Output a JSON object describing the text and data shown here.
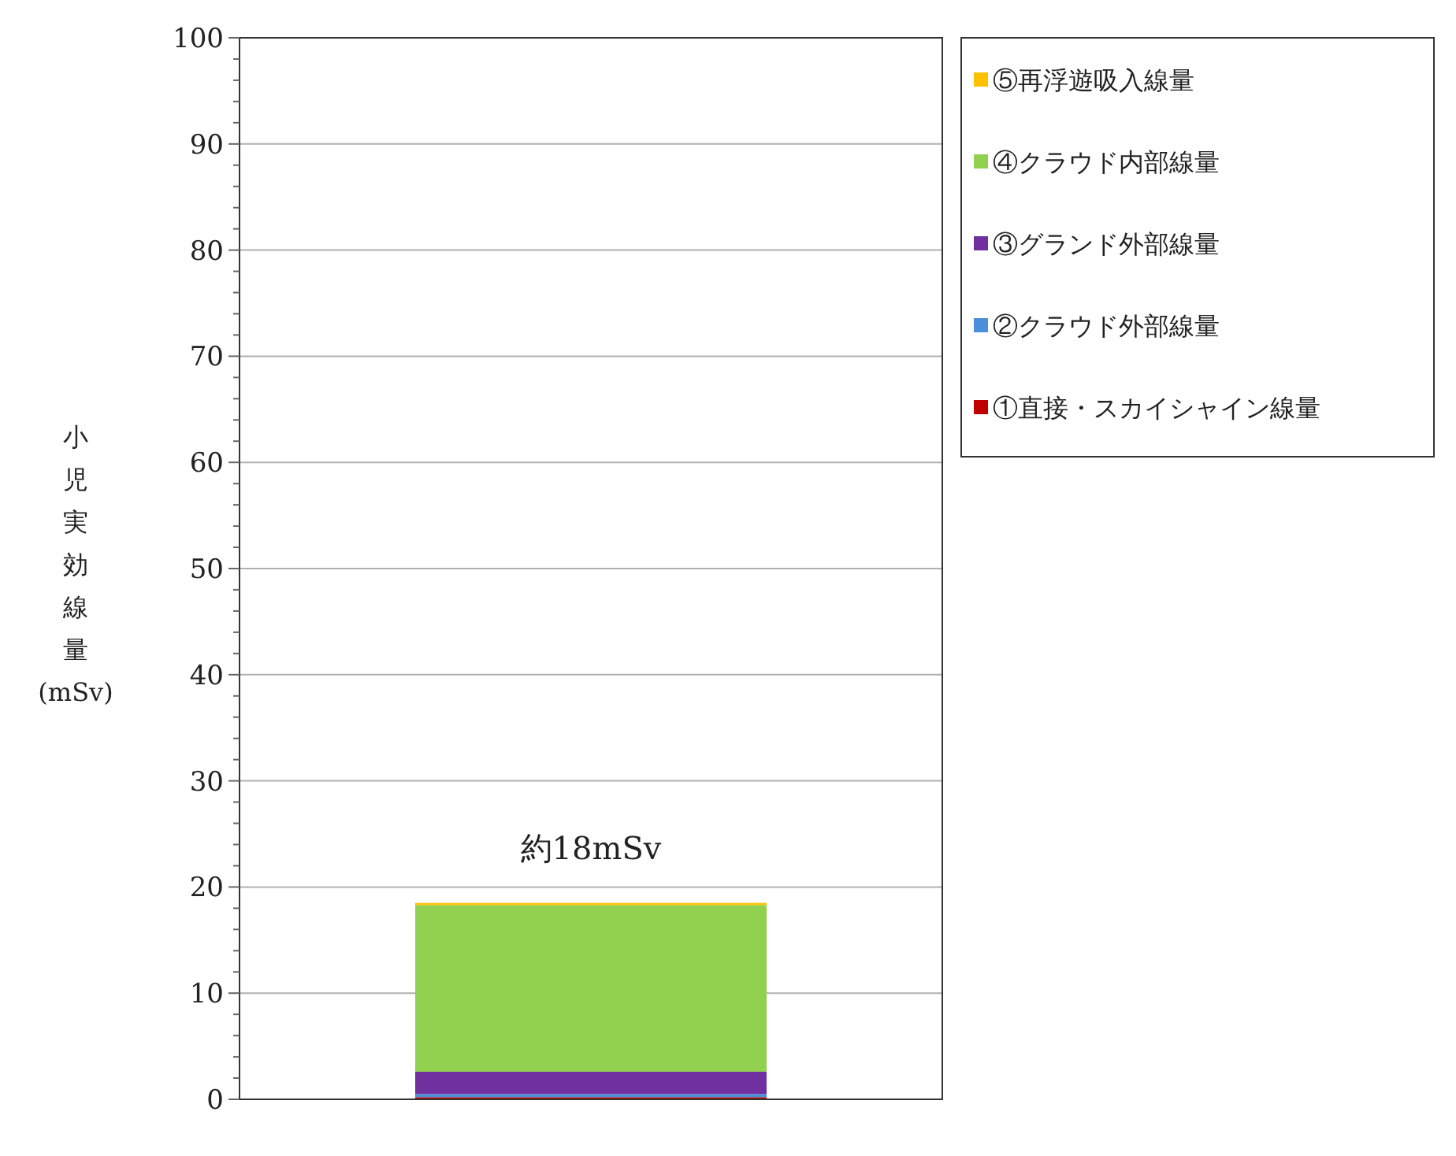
{
  "chart_data": {
    "type": "bar",
    "stacked": true,
    "categories": [
      null
    ],
    "series": [
      {
        "name": "①直接・スカイシャイン線量",
        "color": "#c00000",
        "values": [
          0.2
        ]
      },
      {
        "name": "②クラウド外部線量",
        "color": "#4a90d9",
        "values": [
          0.3
        ]
      },
      {
        "name": "③グランド外部線量",
        "color": "#7030a0",
        "values": [
          2.1
        ]
      },
      {
        "name": "④クラウド内部線量",
        "color": "#92d050",
        "values": [
          15.7
        ]
      },
      {
        "name": "⑤再浮遊吸入線量",
        "color": "#ffc000",
        "values": [
          0.2
        ]
      }
    ],
    "ylabel": "小児実効線量(mSv)",
    "ylim": [
      0,
      100
    ],
    "yticks": [
      0,
      {
        "value": 2,
        "label": null
      },
      {
        "value": 4,
        "label": null
      },
      {
        "value": 6,
        "label": null
      },
      {
        "value": 8,
        "label": null
      },
      10,
      {
        "value": 12,
        "label": null
      },
      {
        "value": 14,
        "label": null
      },
      {
        "value": 16,
        "label": null
      },
      {
        "value": 18,
        "label": null
      },
      20,
      {
        "value": 22,
        "label": null
      },
      {
        "value": 24,
        "label": null
      },
      {
        "value": 26,
        "label": null
      },
      {
        "value": 28,
        "label": null
      },
      30,
      {
        "value": 32,
        "label": null
      },
      {
        "value": 34,
        "label": null
      },
      {
        "value": 36,
        "label": null
      },
      {
        "value": 38,
        "label": null
      },
      40,
      {
        "value": 42,
        "label": null
      },
      {
        "value": 44,
        "label": null
      },
      {
        "value": 46,
        "label": null
      },
      {
        "value": 48,
        "label": null
      },
      50,
      {
        "value": 52,
        "label": null
      },
      {
        "value": 54,
        "label": null
      },
      {
        "value": 56,
        "label": null
      },
      {
        "value": 58,
        "label": null
      },
      60,
      {
        "value": 62,
        "label": null
      },
      {
        "value": 64,
        "label": null
      },
      {
        "value": 66,
        "label": null
      },
      {
        "value": 68,
        "label": null
      },
      70,
      {
        "value": 72,
        "label": null
      },
      {
        "value": 74,
        "label": null
      },
      {
        "value": 76,
        "label": null
      },
      {
        "value": 78,
        "label": null
      },
      80,
      {
        "value": 82,
        "label": null
      },
      {
        "value": 84,
        "label": null
      },
      {
        "value": 86,
        "label": null
      },
      {
        "value": 88,
        "label": null
      },
      90,
      {
        "value": 92,
        "label": null
      },
      {
        "value": 94,
        "label": null
      },
      {
        "value": 96,
        "label": null
      },
      {
        "value": 98,
        "label": null
      },
      100
    ],
    "grid": "y",
    "legend": "right",
    "annotations": [
      "約18mSv"
    ]
  }
}
